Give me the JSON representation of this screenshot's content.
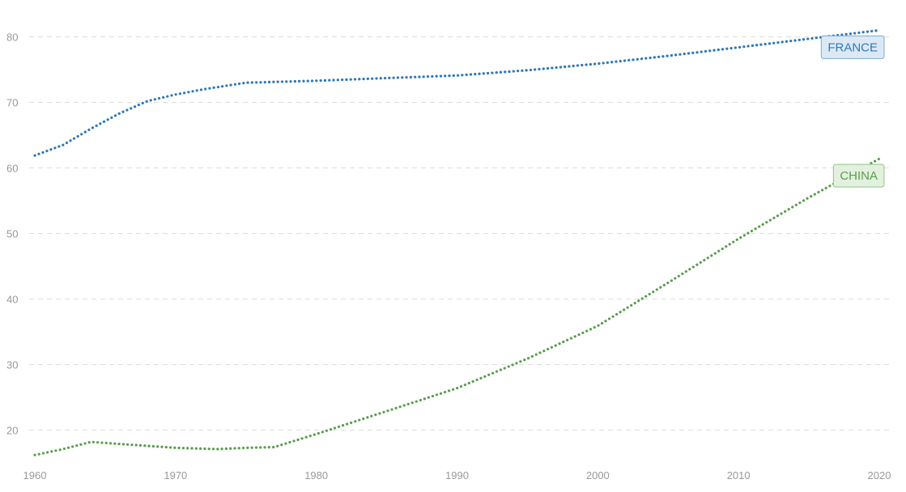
{
  "chart_data": {
    "type": "line",
    "title": "",
    "xlabel": "",
    "ylabel": "",
    "xlim": [
      1960,
      2020
    ],
    "ylim": [
      15.5,
      85
    ],
    "grid": true,
    "x_ticks": [
      1960,
      1970,
      1980,
      1990,
      2000,
      2010,
      2020
    ],
    "y_ticks": [
      20,
      30,
      40,
      50,
      60,
      70,
      80
    ],
    "x_tick_labels": [
      "1960",
      "1970",
      "1980",
      "1990",
      "2000",
      "2010",
      "2020"
    ],
    "y_tick_labels": [
      "20",
      "30",
      "40",
      "50",
      "60",
      "70",
      "80"
    ],
    "series": [
      {
        "name": "FRANCE",
        "color": "#2e78b7",
        "label_bg": "#dce9f5",
        "label_border": "#7aaad6",
        "x": [
          1960,
          1962,
          1964,
          1966,
          1968,
          1970,
          1972,
          1975,
          1980,
          1985,
          1990,
          1995,
          2000,
          2005,
          2010,
          2015,
          2020
        ],
        "y": [
          61.9,
          63.5,
          66.0,
          68.3,
          70.2,
          71.2,
          72.0,
          73.0,
          73.3,
          73.7,
          74.1,
          74.9,
          75.9,
          77.1,
          78.4,
          79.7,
          81.0
        ]
      },
      {
        "name": "CHINA",
        "color": "#5a9e4e",
        "label_bg": "#e3f0df",
        "label_border": "#93c586",
        "x": [
          1960,
          1962,
          1964,
          1966,
          1968,
          1970,
          1973,
          1975,
          1977,
          1980,
          1985,
          1990,
          1995,
          2000,
          2005,
          2010,
          2015,
          2020
        ],
        "y": [
          16.2,
          17.1,
          18.2,
          17.9,
          17.6,
          17.3,
          17.1,
          17.3,
          17.4,
          19.4,
          22.9,
          26.4,
          30.9,
          35.9,
          42.5,
          49.2,
          55.5,
          61.4
        ]
      }
    ]
  }
}
